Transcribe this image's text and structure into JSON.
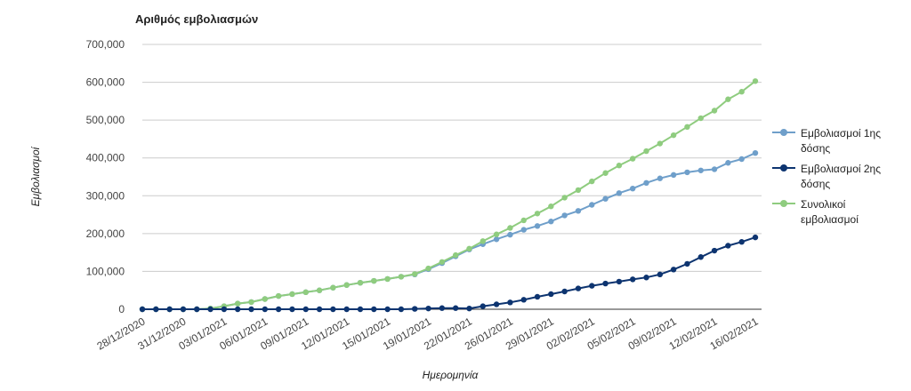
{
  "chart_data": {
    "type": "line",
    "title": "Αριθμός εμβολιασμών",
    "x_label": "Ημερομηνία",
    "y_label": "Εμβολιασμοί",
    "categories": [
      "28/12/2020",
      null,
      null,
      "31/12/2020",
      null,
      null,
      "03/01/2021",
      null,
      null,
      "06/01/2021",
      null,
      null,
      "09/01/2021",
      null,
      null,
      "12/01/2021",
      null,
      null,
      "15/01/2021",
      null,
      null,
      "19/01/2021",
      null,
      null,
      "22/01/2021",
      null,
      null,
      "26/01/2021",
      null,
      null,
      "29/01/2021",
      null,
      null,
      "02/02/2021",
      null,
      null,
      "05/02/2021",
      null,
      null,
      "09/02/2021",
      null,
      null,
      "12/02/2021",
      null,
      null,
      "16/02/2021"
    ],
    "series": [
      {
        "name": "Εμβολιασμοί 1ης δόσης",
        "color": "#6f9fca",
        "values": [
          0,
          0,
          0,
          0,
          0,
          2000,
          8000,
          15000,
          19000,
          27000,
          35000,
          40000,
          45000,
          50000,
          57000,
          64000,
          70000,
          75000,
          80000,
          86000,
          92000,
          106000,
          122000,
          140000,
          158000,
          172000,
          185000,
          197000,
          210000,
          220000,
          232000,
          248000,
          260000,
          276000,
          292000,
          307000,
          319000,
          334000,
          346000,
          355000,
          362000,
          367000,
          370000,
          387000,
          397000,
          413000
        ]
      },
      {
        "name": "Εμβολιασμοί 2ης δόσης",
        "color": "#0d3470",
        "values": [
          0,
          0,
          0,
          0,
          0,
          0,
          0,
          0,
          0,
          0,
          0,
          0,
          0,
          0,
          0,
          0,
          0,
          0,
          0,
          0,
          1000,
          2000,
          3000,
          3000,
          2000,
          8000,
          13000,
          18000,
          25000,
          33000,
          40000,
          47000,
          55000,
          62000,
          68000,
          73000,
          79000,
          84000,
          92000,
          105000,
          120000,
          138000,
          155000,
          168000,
          178000,
          190000
        ]
      },
      {
        "name": "Συνολικοί εμβολιασμοί",
        "color": "#8fcc7f",
        "values": [
          0,
          0,
          0,
          0,
          0,
          2000,
          8000,
          15000,
          19000,
          27000,
          35000,
          40000,
          45000,
          50000,
          57000,
          64000,
          70000,
          75000,
          80000,
          86000,
          93000,
          108000,
          125000,
          143000,
          160000,
          180000,
          198000,
          215000,
          235000,
          253000,
          272000,
          295000,
          315000,
          338000,
          360000,
          380000,
          398000,
          418000,
          438000,
          460000,
          482000,
          505000,
          525000,
          555000,
          575000,
          603000
        ]
      }
    ],
    "ylim": [
      0,
      700000
    ],
    "yticks": [
      {
        "value": 0,
        "label": "0"
      },
      {
        "value": 100000,
        "label": "100,000"
      },
      {
        "value": 200000,
        "label": "200,000"
      },
      {
        "value": 300000,
        "label": "300,000"
      },
      {
        "value": 400000,
        "label": "400,000"
      },
      {
        "value": 500000,
        "label": "500,000"
      },
      {
        "value": 600000,
        "label": "600,000"
      },
      {
        "value": 700000,
        "label": "700,000"
      }
    ],
    "grid": true,
    "legend": "right"
  }
}
